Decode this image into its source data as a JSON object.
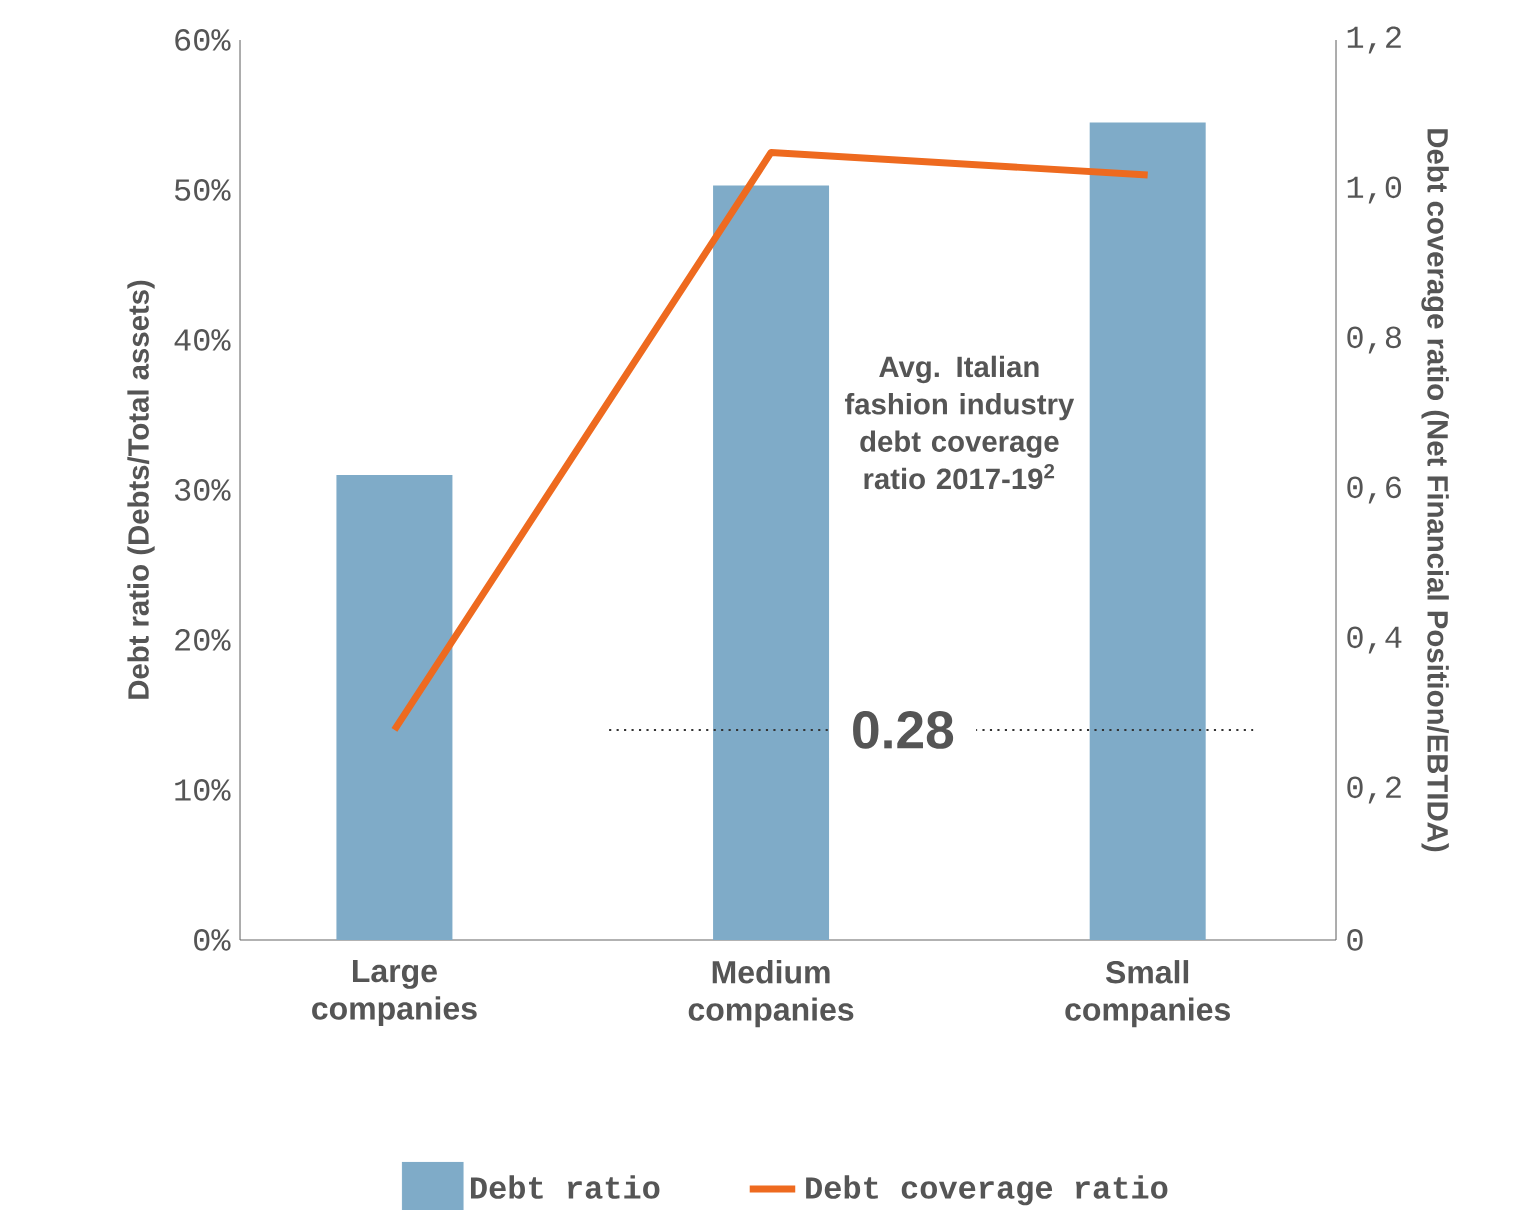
{
  "chart_data": {
    "type": "bar",
    "categories": [
      "Large companies",
      "Medium companies",
      "Small companies"
    ],
    "series": [
      {
        "name": "Debt ratio",
        "color": "#7fabc8",
        "values": [
          31,
          50.3,
          54.5
        ]
      },
      {
        "name": "Debt coverage ratio",
        "type": "line",
        "axis": "y2",
        "color": "#ee6a1f",
        "values": [
          0.28,
          1.05,
          1.02
        ]
      }
    ],
    "ylim": [
      0,
      60
    ],
    "yticks": [
      {
        "value": 0,
        "label": "0%"
      },
      {
        "value": 10,
        "label": "10%"
      },
      {
        "value": 20,
        "label": "20%"
      },
      {
        "value": 30,
        "label": "30%"
      },
      {
        "value": 40,
        "label": "40%"
      },
      {
        "value": 50,
        "label": "50%"
      },
      {
        "value": 60,
        "label": "60%"
      }
    ],
    "y2lim": [
      0,
      1.2
    ],
    "y2ticks": [
      0,
      {
        "value": 0.2,
        "label": "0,2"
      },
      {
        "value": 0.4,
        "label": "0,4"
      },
      {
        "value": 0.6,
        "label": "0,6"
      },
      {
        "value": 0.8,
        "label": "0,8"
      },
      {
        "value": 1,
        "label": "1,0"
      },
      {
        "value": 1.2,
        "label": "1,2"
      }
    ],
    "ylabel": "Debt ratio (Debts/Total assets)",
    "y2label": "Debt coverage ratio (Net Financial Position/EBTIDA)",
    "ref_lines": [
      {
        "axis": "y2",
        "value": 0.28,
        "label": "0.28",
        "line_style": "dotted",
        "color": "#333333"
      }
    ],
    "annotations": [
      "Avg. Italian fashion industry debt coverage ratio 2017-19$^{2}$"
    ],
    "legend": "bottom",
    "grid": false,
    "marker": "none",
    "line_style": "solid"
  }
}
